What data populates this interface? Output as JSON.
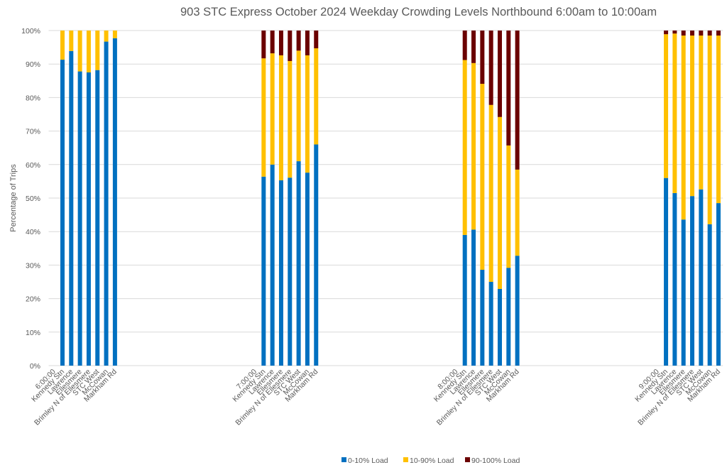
{
  "chart_data": {
    "type": "bar",
    "stacked": true,
    "title": "903 STC Express October 2024  Weekday Crowding Levels Northbound 6:00am to 10:00am",
    "xlabel": "",
    "ylabel": "Percentage of Trips",
    "ylim": [
      0,
      100
    ],
    "y_ticks": [
      "0%",
      "10%",
      "20%",
      "30%",
      "40%",
      "50%",
      "60%",
      "70%",
      "80%",
      "90%",
      "100%"
    ],
    "grid": true,
    "legend_position": "bottom",
    "gap_slots_between_groups": 15,
    "groups": [
      {
        "label": "6:00:00",
        "stops": [
          "Kennedy Stn",
          "Lawrence",
          "Ellesmere",
          "Brimley N of Ellesmere",
          "STC West",
          "McCowan",
          "Markham Rd"
        ],
        "values": {
          "0-10% Load": [
            91.3,
            93.9,
            87.8,
            87.5,
            88.2,
            96.7,
            97.7
          ],
          "10-90% Load": [
            8.7,
            6.1,
            12.2,
            12.5,
            11.8,
            3.3,
            2.3
          ],
          "90-100% Load": [
            0,
            0,
            0,
            0,
            0,
            0,
            0
          ]
        }
      },
      {
        "label": "7:00:00",
        "stops": [
          "Kennedy Stn",
          "Lawrence",
          "Ellesmere",
          "Brimley N of Ellesmere",
          "STC West",
          "McCowan",
          "Markham Rd"
        ],
        "values": {
          "0-10% Load": [
            56.4,
            60.0,
            55.3,
            56.1,
            61.0,
            57.6,
            66.0
          ],
          "10-90% Load": [
            35.3,
            33.2,
            37.3,
            34.8,
            33.0,
            35.0,
            28.7
          ],
          "90-100% Load": [
            8.3,
            6.8,
            7.4,
            9.1,
            6.0,
            7.4,
            5.3
          ]
        }
      },
      {
        "label": "8:00:00",
        "stops": [
          "Kennedy Stn",
          "Lawrence",
          "Ellesmere",
          "Brimley N of Ellesmere",
          "STC West",
          "McCowan",
          "Markham Rd"
        ],
        "values": {
          "0-10% Load": [
            39.0,
            40.6,
            28.6,
            25.0,
            22.9,
            29.2,
            32.8
          ],
          "10-90% Load": [
            52.2,
            49.7,
            55.5,
            52.8,
            51.3,
            36.5,
            25.7
          ],
          "90-100% Load": [
            8.8,
            9.7,
            15.9,
            22.2,
            25.8,
            34.3,
            41.5
          ]
        }
      },
      {
        "label": "9:00:00",
        "stops": [
          "Kennedy Stn",
          "Lawrence",
          "Ellesmere",
          "Brimley N of Ellesmere",
          "STC West",
          "McCowan",
          "Markham Rd"
        ],
        "values": {
          "0-10% Load": [
            56.0,
            51.5,
            43.6,
            50.6,
            52.6,
            42.2,
            48.5
          ],
          "10-90% Load": [
            42.9,
            47.6,
            54.9,
            47.9,
            45.9,
            56.3,
            50.0
          ],
          "90-100% Load": [
            1.1,
            0.9,
            1.5,
            1.5,
            1.5,
            1.5,
            1.5
          ]
        }
      }
    ],
    "series": [
      {
        "name": "0-10% Load",
        "color": "#0070c0"
      },
      {
        "name": "10-90% Load",
        "color": "#ffc000"
      },
      {
        "name": "90-100% Load",
        "color": "#6b0000"
      }
    ]
  }
}
